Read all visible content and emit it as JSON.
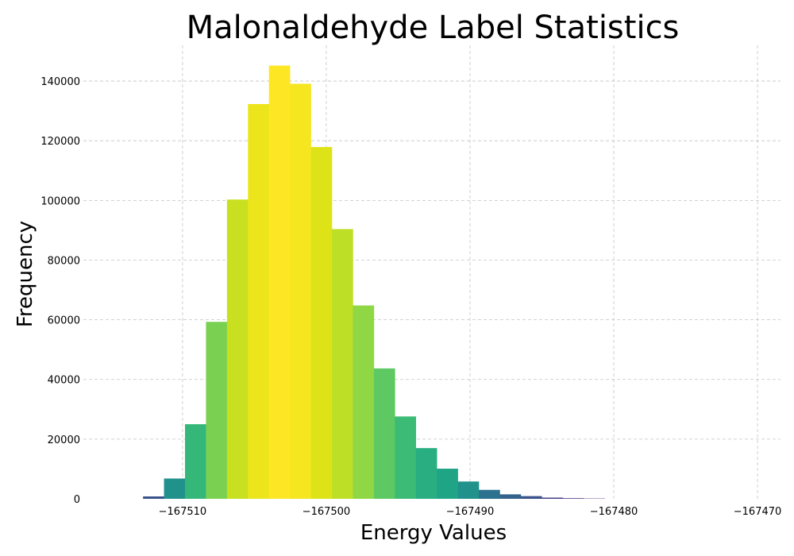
{
  "chart_data": {
    "type": "bar",
    "title": "Malonaldehyde Label Statistics",
    "xlabel": "Energy Values",
    "ylabel": "Frequency",
    "grid": true,
    "xlim": [
      -167516.9,
      -167468.4
    ],
    "ylim": [
      0,
      152000
    ],
    "xticks": [
      -167510,
      -167500,
      -167490,
      -167480,
      -167470
    ],
    "xtick_labels": [
      "−167510",
      "−167500",
      "−167490",
      "−167480",
      "−167470"
    ],
    "yticks": [
      0,
      20000,
      40000,
      60000,
      80000,
      100000,
      120000,
      140000
    ],
    "ytick_labels": [
      "0",
      "20000",
      "40000",
      "60000",
      "80000",
      "100000",
      "120000",
      "140000"
    ],
    "bin_width": 1.46,
    "bin_starts": [
      -167512.75,
      -167511.29,
      -167509.83,
      -167508.37,
      -167506.91,
      -167505.45,
      -167503.99,
      -167502.53,
      -167501.07,
      -167499.61,
      -167498.15,
      -167496.69,
      -167495.23,
      -167493.77,
      -167492.31,
      -167490.85,
      -167489.39,
      -167487.93,
      -167486.47,
      -167485.01,
      -167483.55,
      -167482.09
    ],
    "values": [
      800,
      6800,
      25000,
      59300,
      100300,
      132300,
      145200,
      139100,
      117900,
      90400,
      64800,
      43700,
      27600,
      17000,
      10100,
      5800,
      3000,
      1500,
      900,
      400,
      200,
      100
    ],
    "colors": [
      "#3b528b",
      "#21918c",
      "#35b779",
      "#7ad151",
      "#c8e020",
      "#ece51b",
      "#fde725",
      "#f5e61f",
      "#dee318",
      "#bddf26",
      "#8fd744",
      "#5ec962",
      "#3bbb75",
      "#28ae80",
      "#20a486",
      "#21918c",
      "#2c728e",
      "#33638d",
      "#3b528b",
      "#433e85",
      "#472d7b",
      "#482173"
    ]
  }
}
